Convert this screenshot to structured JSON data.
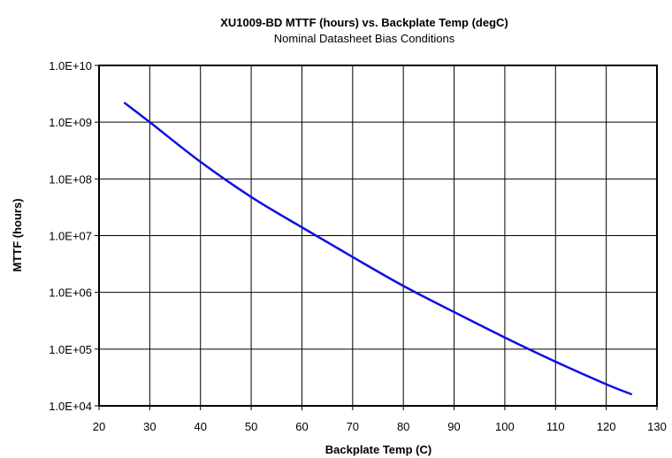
{
  "chart_data": {
    "type": "line",
    "title": "XU1009-BD MTTF (hours) vs. Backplate Temp (degC)",
    "subtitle": "Nominal Datasheet Bias Conditions",
    "xlabel": "Backplate Temp (C)",
    "ylabel": "MTTF (hours)",
    "xlim": [
      20,
      130
    ],
    "ylim": [
      10000,
      10000000000
    ],
    "y_scale": "log",
    "grid": true,
    "x_ticks": [
      20,
      30,
      40,
      50,
      60,
      70,
      80,
      90,
      100,
      110,
      120,
      130
    ],
    "x_tick_labels": [
      "20",
      "30",
      "40",
      "50",
      "60",
      "70",
      "80",
      "90",
      "100",
      "110",
      "120",
      "130"
    ],
    "y_ticks": [
      10000,
      100000,
      1000000,
      10000000,
      100000000,
      1000000000,
      10000000000
    ],
    "y_tick_labels": [
      "1.0E+04",
      "1.0E+05",
      "1.0E+06",
      "1.0E+07",
      "1.0E+08",
      "1.0E+09",
      "1.0E+10"
    ],
    "series": [
      {
        "color": "#1010e0",
        "x": [
          25,
          30,
          40,
          50,
          60,
          70,
          80,
          90,
          100,
          110,
          120,
          125
        ],
        "y": [
          2200000000,
          1000000000,
          200000000,
          48000000,
          14000000,
          4200000,
          1300000,
          450000,
          160000,
          60000,
          24000,
          16000
        ]
      }
    ]
  }
}
